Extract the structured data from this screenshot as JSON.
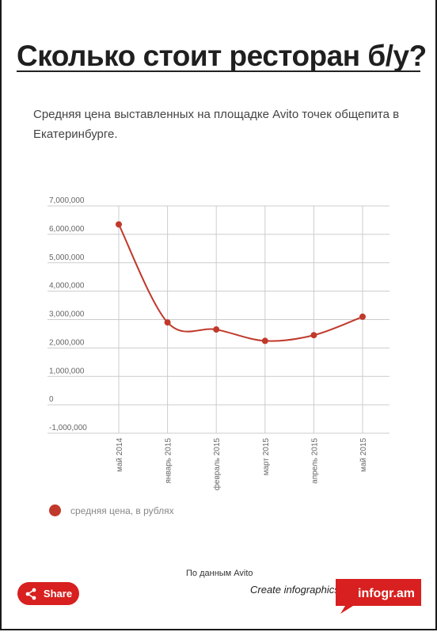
{
  "header": {
    "title": "Сколько стоит ресторан б/у?",
    "subtitle": "Средняя цена выставленных на площадке Avito точек общепита в Екатеринбурге."
  },
  "chart_data": {
    "type": "line",
    "categories": [
      "май 2014",
      "январь 2015",
      "февраль 2015",
      "март 2015",
      "апрель 2015",
      "май 2015"
    ],
    "series": [
      {
        "name": "средняя цена, в рублях",
        "values": [
          6350000,
          2900000,
          2650000,
          2250000,
          2450000,
          3100000
        ],
        "color": "#c0392b"
      }
    ],
    "y_ticks": [
      "7,000,000",
      "6,000,000",
      "5,000,000",
      "4,000,000",
      "3,000,000",
      "2,000,000",
      "1,000,000",
      "0",
      "-1,000,000"
    ],
    "ylim": [
      -1000000,
      7000000
    ],
    "grid": true,
    "legend_position": "bottom-left"
  },
  "footer": {
    "source": "По данным Avito",
    "share_label": "Share",
    "create_label": "Create infographics",
    "brand": "infogr.am"
  },
  "colors": {
    "accent": "#d7201f",
    "series": "#c0392b"
  }
}
